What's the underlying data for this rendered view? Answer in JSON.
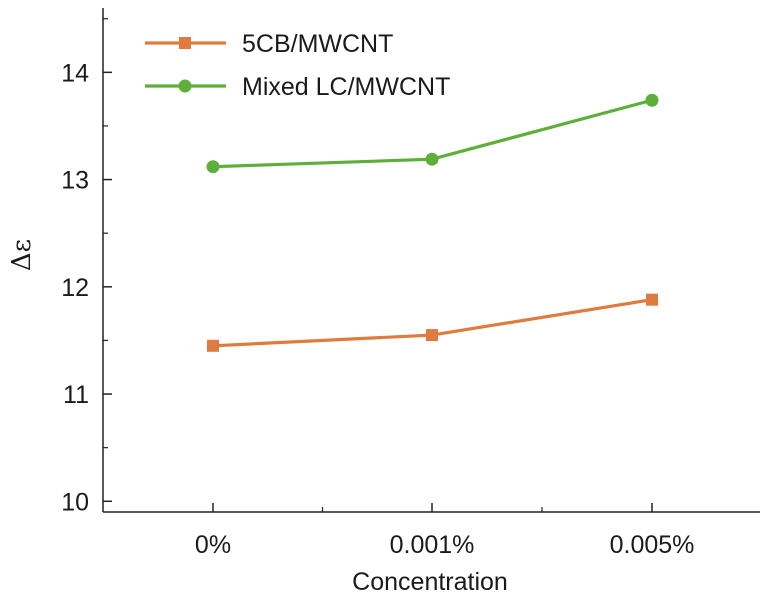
{
  "chart_data": {
    "type": "line",
    "categories": [
      "0%",
      "0.001%",
      "0.005%"
    ],
    "xlabel": "Concentration",
    "ylabel": "Δε",
    "ylim": [
      9.9,
      14.6
    ],
    "yticks": [
      10,
      11,
      12,
      13,
      14
    ],
    "grid": false,
    "legend_position": "top-left",
    "series": [
      {
        "name": "5CB/MWCNT",
        "values": [
          11.45,
          11.55,
          11.88
        ],
        "color": "#E07B3F",
        "marker": "square"
      },
      {
        "name": "Mixed LC/MWCNT",
        "values": [
          13.12,
          13.19,
          13.74
        ],
        "color": "#5DAF3A",
        "marker": "circle"
      }
    ]
  }
}
